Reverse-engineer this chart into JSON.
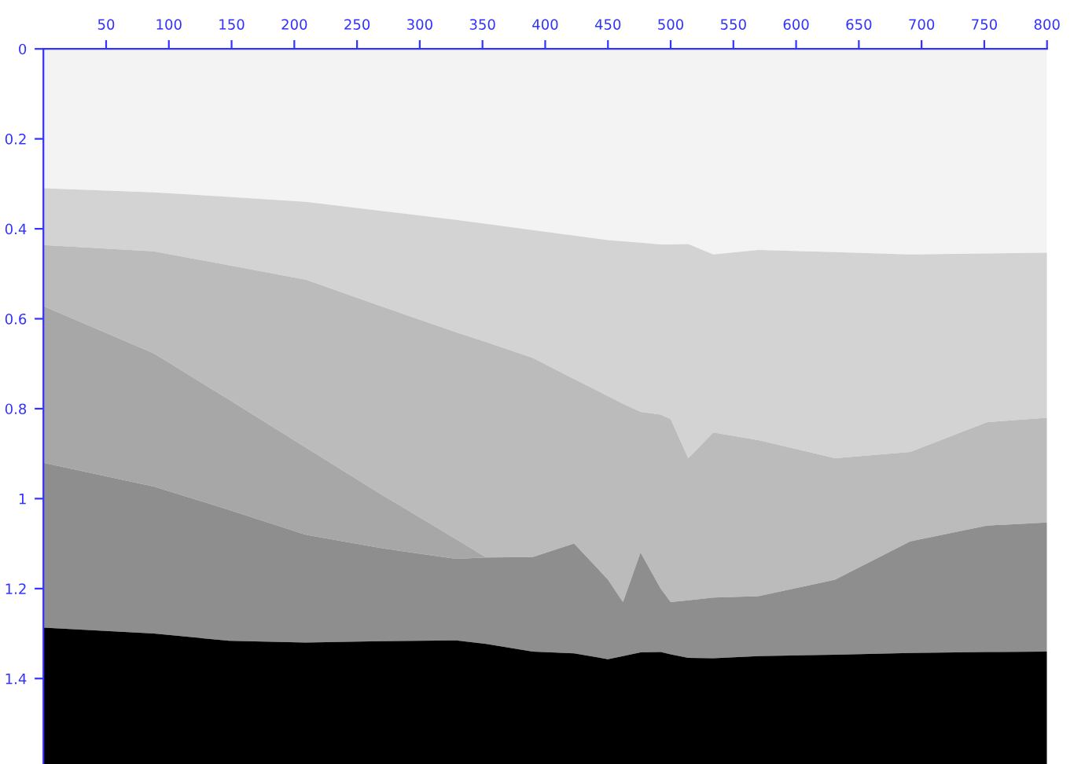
{
  "chart_data": {
    "type": "area",
    "stacked": true,
    "x": [
      0,
      88,
      148,
      209,
      269,
      329,
      353,
      390,
      423,
      450,
      462,
      476,
      492,
      500,
      514,
      534,
      570,
      631,
      691,
      752,
      800
    ],
    "xlim": [
      0,
      800
    ],
    "ylim": [
      1.59,
      0
    ],
    "xticks": [
      50,
      100,
      150,
      200,
      250,
      300,
      350,
      400,
      450,
      500,
      550,
      600,
      650,
      700,
      750,
      800
    ],
    "yticks": [
      0,
      0.2,
      0.4,
      0.6,
      0.8,
      1,
      1.2,
      1.4
    ],
    "grid": false,
    "legend": false,
    "series": [
      {
        "color": "#f3f3f3",
        "values": [
          0.31,
          0.319,
          0.329,
          0.34,
          0.36,
          0.38,
          0.389,
          0.403,
          0.415,
          0.425,
          0.428,
          0.431,
          0.435,
          0.435,
          0.434,
          0.457,
          0.447,
          0.452,
          0.457,
          0.455,
          0.453
        ]
      },
      {
        "color": "#d3d3d3",
        "values": [
          0.126,
          0.131,
          0.152,
          0.173,
          0.212,
          0.25,
          0.263,
          0.284,
          0.319,
          0.347,
          0.361,
          0.376,
          0.378,
          0.388,
          0.476,
          0.396,
          0.423,
          0.458,
          0.439,
          0.375,
          0.367
        ]
      },
      {
        "color": "#bbbbbb",
        "values": [
          0.136,
          0.227,
          0.299,
          0.373,
          0.418,
          0.46,
          0.479,
          0.443,
          0.366,
          0.408,
          0.441,
          0.313,
          0.387,
          0.407,
          0.316,
          0.367,
          0.347,
          0.27,
          0.199,
          0.23,
          0.233
        ]
      },
      {
        "color": "#a7a7a7",
        "values": [
          0.348,
          0.296,
          0.245,
          0.194,
          0.12,
          0.044,
          0,
          0,
          0,
          0,
          0,
          0,
          0,
          0,
          0,
          0,
          0,
          0,
          0,
          0,
          0
        ]
      },
      {
        "color": "#8e8e8e",
        "values": [
          0.367,
          0.327,
          0.291,
          0.24,
          0.207,
          0.181,
          0.192,
          0.21,
          0.244,
          0.177,
          0.12,
          0.222,
          0.141,
          0.116,
          0.128,
          0.135,
          0.133,
          0.167,
          0.248,
          0.281,
          0.287
        ]
      },
      {
        "color": "#000000",
        "values": [
          0.303,
          0.29,
          0.274,
          0.27,
          0.273,
          0.275,
          0.267,
          0.25,
          0.246,
          0.233,
          0.24,
          0.248,
          0.249,
          0.244,
          0.236,
          0.235,
          0.24,
          0.243,
          0.247,
          0.249,
          0.25
        ]
      }
    ]
  }
}
